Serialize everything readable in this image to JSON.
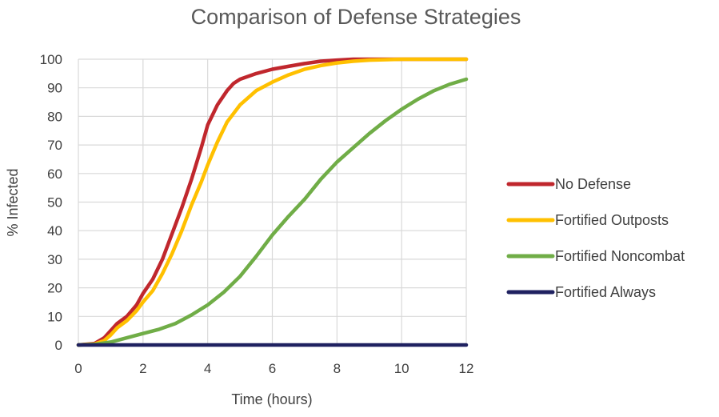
{
  "chart_data": {
    "type": "line",
    "title": "Comparison of Defense Strategies",
    "xlabel": "Time (hours)",
    "ylabel": "% Infected",
    "xlim": [
      0,
      12
    ],
    "ylim": [
      0,
      100
    ],
    "x_ticks": [
      0,
      2,
      4,
      6,
      8,
      10,
      12
    ],
    "y_ticks": [
      0,
      10,
      20,
      30,
      40,
      50,
      60,
      70,
      80,
      90,
      100
    ],
    "grid": true,
    "legend_position": "right",
    "series": [
      {
        "name": "No Defense",
        "color": "#c0272d",
        "x": [
          0,
          0.5,
          0.8,
          1,
          1.2,
          1.5,
          1.8,
          2,
          2.3,
          2.6,
          2.9,
          3.2,
          3.5,
          3.8,
          4,
          4.3,
          4.6,
          4.8,
          5,
          5.5,
          6,
          6.5,
          7,
          7.5,
          8,
          8.5,
          9,
          10,
          11,
          12
        ],
        "y": [
          0,
          0.5,
          2.5,
          5,
          7.5,
          10,
          14,
          18,
          23,
          30,
          39,
          48,
          58,
          69,
          77,
          84,
          89,
          91.5,
          93,
          95,
          96.5,
          97.5,
          98.5,
          99.3,
          99.7,
          100,
          100,
          100,
          100,
          100
        ]
      },
      {
        "name": "Fortified Outposts",
        "color": "#ffc000",
        "x": [
          0,
          0.5,
          0.8,
          1,
          1.2,
          1.5,
          1.8,
          2,
          2.3,
          2.6,
          2.9,
          3.2,
          3.5,
          3.8,
          4,
          4.3,
          4.6,
          4.8,
          5,
          5.5,
          6,
          6.5,
          7,
          7.5,
          8,
          8.5,
          9,
          10,
          11,
          12
        ],
        "y": [
          0,
          0.3,
          1.5,
          3.5,
          6,
          8.5,
          12,
          15,
          19,
          25,
          32,
          40,
          49,
          57,
          63,
          71,
          78,
          81,
          84,
          89,
          92,
          94.5,
          96.5,
          97.8,
          98.7,
          99.3,
          99.7,
          100,
          100,
          100
        ]
      },
      {
        "name": "Fortified Noncombat",
        "color": "#70ad47",
        "x": [
          0,
          0.5,
          1,
          1.5,
          2,
          2.5,
          3,
          3.5,
          4,
          4.5,
          5,
          5.5,
          6,
          6.5,
          7,
          7.5,
          8,
          8.5,
          9,
          9.5,
          10,
          10.5,
          11,
          11.5,
          12
        ],
        "y": [
          0,
          0.2,
          1,
          2.5,
          4,
          5.5,
          7.5,
          10.5,
          14,
          18.5,
          24,
          31,
          38.5,
          45,
          51,
          58,
          64,
          69,
          74,
          78.5,
          82.5,
          86,
          89,
          91.3,
          93
        ]
      },
      {
        "name": "Fortified Always",
        "color": "#1f2160",
        "x": [
          0,
          12
        ],
        "y": [
          0,
          0
        ]
      }
    ]
  }
}
